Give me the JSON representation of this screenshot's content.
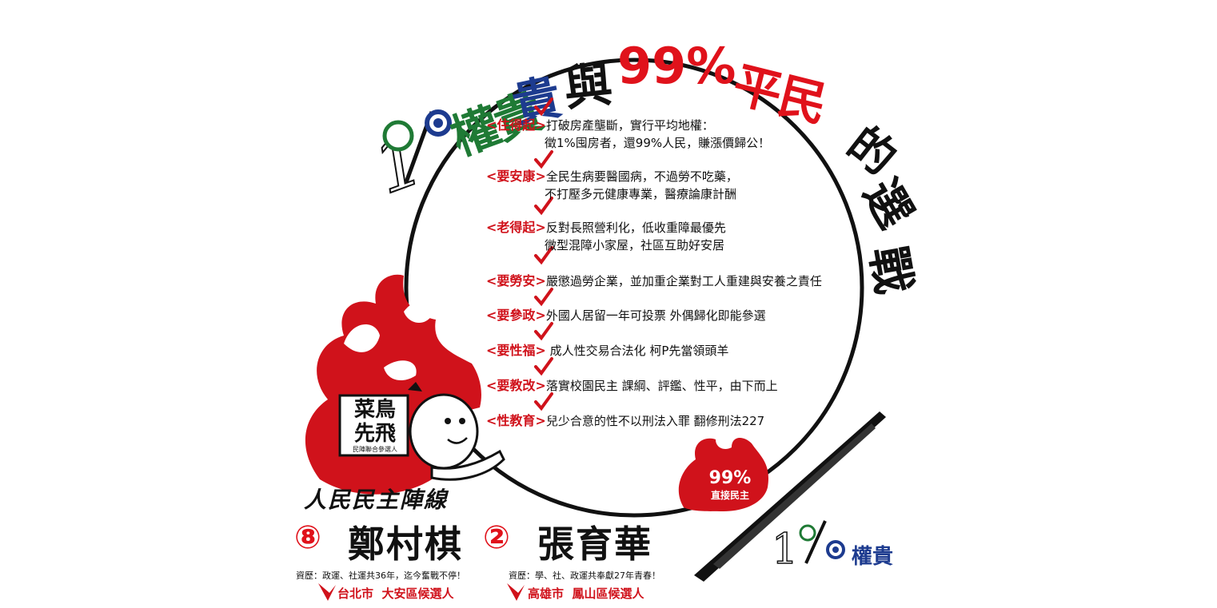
{
  "headline": {
    "prefix": "1%",
    "word_power": "權貴",
    "word_and": "與",
    "word_99": "99%",
    "word_people": "平民",
    "word_of": "的",
    "word_elect": "選",
    "word_war": "戰"
  },
  "platform": [
    {
      "tag": "<住得起>",
      "line1": "打破房產壟斷，實行平均地權：",
      "line2": "徵1%囤房者，還99%人民，賺漲價歸公！"
    },
    {
      "tag": "<要安康>",
      "line1": "全民生病要醫國病，不過勞不吃藥，",
      "line2": "不打壓多元健康專業，醫療論康計酬"
    },
    {
      "tag": "<老得起>",
      "line1": "反對長照營利化，低收重障最優先",
      "line2": "微型混障小家屋，社區互助好安居"
    },
    {
      "tag": "<要勞安>",
      "line1": "嚴懲過勞企業，並加重企業對工人重建與安養之責任",
      "line2": ""
    },
    {
      "tag": "<要參政>",
      "line1": "外國人居留一年可投票 外偶歸化即能參選",
      "line2": ""
    },
    {
      "tag": "<要性福>",
      "line1": " 成人性交易合法化  柯P先當領頭羊",
      "line2": ""
    },
    {
      "tag": "<要教改>",
      "line1": "落實校園民主 課綱、評鑑、性平，由下而上",
      "line2": ""
    },
    {
      "tag": "<性教育>",
      "line1": "兒少合意的性不以刑法入罪 翻修刑法227",
      "line2": ""
    }
  ],
  "logo": {
    "line1": "菜鳥",
    "line2": "先飛",
    "sub": "民陣聯合參選人"
  },
  "party_name": "人民民主陣線",
  "candidates": [
    {
      "number": "⑧",
      "name": "鄭村棋",
      "resume": "資歷：政運、社運共36年，迄今奮戰不停！",
      "city": "台北市",
      "district": "大安區候選人"
    },
    {
      "number": "②",
      "name": "張育華",
      "resume": "資歷：學、社、政運共奉獻27年青春！",
      "city": "高雄市",
      "district": "鳳山區候選人"
    }
  ],
  "badge": {
    "top": "99%",
    "bottom": "直接民主"
  },
  "bottom_right": {
    "prefix": "1%",
    "word": "權貴"
  },
  "colors": {
    "red": "#e0121b",
    "green": "#1f7a35",
    "blue": "#1d3b8f",
    "black": "#111111"
  }
}
